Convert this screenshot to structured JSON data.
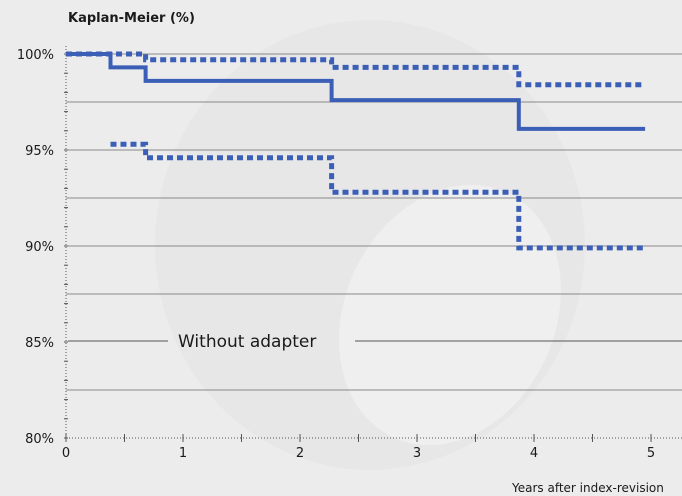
{
  "chart_data": {
    "type": "line",
    "title": "Kaplan-Meier (%)",
    "xlabel": "Years after index-revision",
    "ylabel": "",
    "annotation": "Without adapter",
    "xlim": [
      0,
      5
    ],
    "ylim": [
      80,
      100
    ],
    "xticks": [
      0,
      1,
      2,
      3,
      4,
      5
    ],
    "yticks": [
      {
        "value": 100,
        "label": "100%"
      },
      {
        "value": 95,
        "label": "95%"
      },
      {
        "value": 90,
        "label": "90%"
      },
      {
        "value": 85,
        "label": "85%"
      },
      {
        "value": 80,
        "label": "80%"
      }
    ],
    "grid": "horizontal lines at every 2.5%",
    "colors": {
      "series": "#3b5fb7",
      "grid": "#8a8a8a",
      "axis": "#555555"
    },
    "series": [
      {
        "style": "solid",
        "step_points": [
          [
            0,
            100
          ],
          [
            0.38,
            100
          ],
          [
            0.38,
            99.3
          ],
          [
            0.68,
            99.3
          ],
          [
            0.68,
            98.6
          ],
          [
            2.27,
            98.6
          ],
          [
            2.27,
            97.6
          ],
          [
            3.87,
            97.6
          ],
          [
            3.87,
            96.1
          ],
          [
            4.95,
            96.1
          ]
        ]
      },
      {
        "style": "dotted",
        "step_points": [
          [
            0,
            100
          ],
          [
            0.68,
            100
          ],
          [
            0.68,
            99.7
          ],
          [
            2.27,
            99.7
          ],
          [
            2.27,
            99.3
          ],
          [
            3.87,
            99.3
          ],
          [
            3.87,
            98.4
          ],
          [
            4.95,
            98.4
          ]
        ]
      },
      {
        "style": "dotted",
        "step_points": [
          [
            0.38,
            95.3
          ],
          [
            0.68,
            95.3
          ],
          [
            0.68,
            94.6
          ],
          [
            2.27,
            94.6
          ],
          [
            2.27,
            92.8
          ],
          [
            3.87,
            92.8
          ],
          [
            3.87,
            89.9
          ],
          [
            4.95,
            89.9
          ]
        ]
      }
    ]
  }
}
